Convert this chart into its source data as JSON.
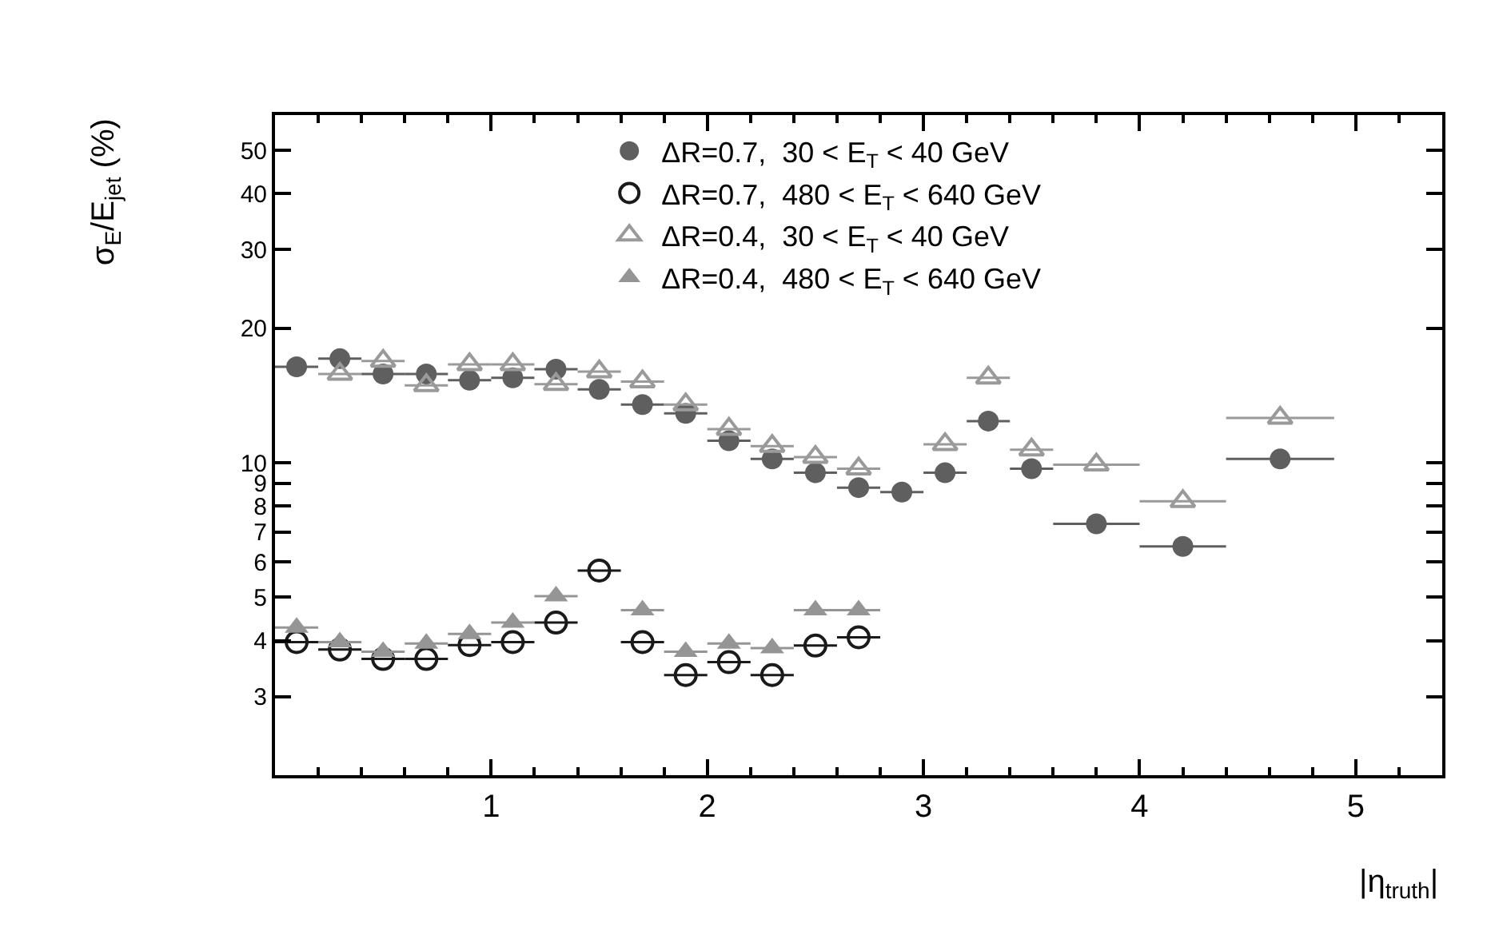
{
  "chart_data": {
    "type": "scatter",
    "xlabel": "|η$_{truth}$|",
    "ylabel": "σ$_{E}$/E$_{jet}$ (%)",
    "x": [
      0.1,
      0.3,
      0.5,
      0.7,
      0.9,
      1.1,
      1.3,
      1.5,
      1.7,
      1.9,
      2.1,
      2.3,
      2.5,
      2.7,
      2.9,
      3.1,
      3.3,
      3.5,
      3.8,
      4.2,
      4.65
    ],
    "series": [
      {
        "name": "ΔR=0.7,  30 < E$_{T}$ < 40 GeV",
        "color": "#5f5f5f",
        "marker": "circle",
        "values": [
          16.4,
          17.1,
          15.8,
          15.8,
          15.3,
          15.5,
          16.2,
          14.6,
          13.5,
          12.9,
          11.2,
          10.2,
          9.5,
          8.8,
          8.6,
          9.5,
          12.4,
          9.7,
          7.3,
          6.5,
          10.2
        ],
        "xerrors": [
          0.1,
          0.1,
          0.1,
          0.1,
          0.1,
          0.1,
          0.1,
          0.1,
          0.1,
          0.1,
          0.1,
          0.1,
          0.1,
          0.1,
          0.1,
          0.1,
          0.1,
          0.1,
          0.2,
          0.2,
          0.25
        ]
      },
      {
        "name": "ΔR=0.7,  480 < E$_{T}$ < 640 GeV",
        "color": "#1a1a1a",
        "marker": "circle-open",
        "x": [
          0.1,
          0.3,
          0.5,
          0.7,
          0.9,
          1.1,
          1.3,
          1.5,
          1.7,
          1.9,
          2.1,
          2.3,
          2.5,
          2.7
        ],
        "values": [
          3.97,
          3.82,
          3.64,
          3.64,
          3.91,
          3.97,
          4.39,
          5.74,
          3.97,
          3.35,
          3.58,
          3.35,
          3.9,
          4.07
        ],
        "xerrors": [
          0.1,
          0.1,
          0.1,
          0.1,
          0.1,
          0.1,
          0.1,
          0.1,
          0.1,
          0.1,
          0.1,
          0.1,
          0.1,
          0.1
        ]
      },
      {
        "name": "ΔR=0.4,  30 < E$_{T}$ < 40 GeV",
        "color": "#9a9a9a",
        "marker": "triangle-open",
        "values": [
          null,
          15.8,
          16.9,
          14.9,
          16.6,
          16.6,
          15.0,
          16.0,
          15.2,
          13.5,
          11.9,
          10.9,
          10.3,
          9.7,
          null,
          11.0,
          15.5,
          10.7,
          9.9,
          8.2,
          12.6
        ],
        "xerrors": [
          null,
          0.1,
          0.1,
          0.1,
          0.1,
          0.1,
          0.1,
          0.1,
          0.1,
          0.1,
          0.1,
          0.1,
          0.1,
          0.1,
          null,
          0.1,
          0.1,
          0.1,
          0.2,
          0.2,
          0.25
        ]
      },
      {
        "name": "ΔR=0.4,  480 < E$_{T}$ < 640 GeV",
        "color": "#959595",
        "marker": "triangle",
        "x": [
          0.1,
          0.3,
          0.5,
          0.7,
          0.9,
          1.1,
          1.3,
          1.5,
          1.7,
          1.9,
          2.1,
          2.3,
          2.5,
          2.7
        ],
        "values": [
          4.28,
          3.97,
          3.78,
          3.94,
          4.14,
          4.39,
          5.03,
          null,
          4.68,
          3.78,
          3.94,
          3.85,
          4.68,
          4.68
        ],
        "xerrors": [
          0.1,
          0.1,
          0.1,
          0.1,
          0.1,
          0.1,
          0.1,
          null,
          0.1,
          0.1,
          0.1,
          0.1,
          0.1,
          0.1
        ]
      }
    ],
    "log": "y",
    "xlim": [
      0,
      5.4
    ],
    "xticks": [
      1,
      2,
      3,
      4,
      5
    ],
    "ylim": [
      2,
      60
    ],
    "yticks": [
      3,
      4,
      5,
      6,
      7,
      8,
      9,
      10,
      20,
      30,
      40,
      50
    ],
    "legend": "top"
  }
}
